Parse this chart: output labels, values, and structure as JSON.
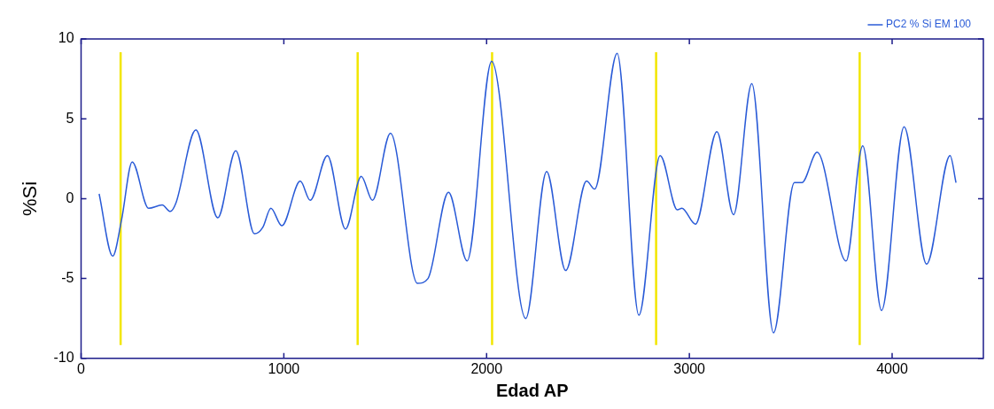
{
  "chart_data": {
    "type": "line",
    "xlabel": "Edad AP",
    "ylabel": "%Si",
    "x": [
      89,
      156,
      200,
      252,
      333,
      400,
      440,
      467,
      566,
      674,
      763,
      855,
      896,
      936,
      990,
      1081,
      1130,
      1215,
      1304,
      1382,
      1437,
      1526,
      1659,
      1711,
      1812,
      1904,
      2025,
      2193,
      2296,
      2390,
      2493,
      2533,
      2644,
      2751,
      2856,
      2941,
      2963,
      3030,
      3136,
      3218,
      3308,
      3415,
      3518,
      3555,
      3630,
      3773,
      3855,
      3948,
      4059,
      4170,
      4286,
      4315
    ],
    "series": [
      {
        "name": "PC2 % Si EM 100",
        "color": "#2a5bd7",
        "values": [
          0.3,
          -3.6,
          -1.3,
          2.3,
          -0.6,
          -0.4,
          -0.8,
          -0.3,
          4.3,
          -1.2,
          3.0,
          -2.2,
          -1.8,
          -0.6,
          -1.7,
          1.1,
          -0.1,
          2.7,
          -1.9,
          1.4,
          -0.1,
          4.1,
          -5.3,
          -5.0,
          0.4,
          -3.9,
          8.6,
          -7.5,
          1.7,
          -4.5,
          1.1,
          0.6,
          9.1,
          -7.3,
          2.7,
          -0.7,
          -0.6,
          -1.6,
          4.2,
          -1.0,
          7.2,
          -8.4,
          1.0,
          1.0,
          2.9,
          -3.9,
          3.3,
          -7.0,
          4.5,
          -4.1,
          2.7,
          1.0
        ]
      }
    ],
    "xlim": [
      0,
      4450
    ],
    "xticks": [
      0,
      1000,
      2000,
      3000,
      4000
    ],
    "ylim": [
      -10,
      10
    ],
    "yticks": [
      -10,
      -5,
      0,
      5,
      10
    ],
    "ref_lines": [
      {
        "axis": "x",
        "value": 195,
        "color": "#f2e600"
      },
      {
        "axis": "x",
        "value": 1364,
        "color": "#f2e600"
      },
      {
        "axis": "x",
        "value": 2027,
        "color": "#f2e600"
      },
      {
        "axis": "x",
        "value": 2836,
        "color": "#f2e600"
      },
      {
        "axis": "x",
        "value": 3840,
        "color": "#f2e600"
      }
    ],
    "grid": false,
    "legend": "top right",
    "marker": "none",
    "line_style": "solid"
  }
}
